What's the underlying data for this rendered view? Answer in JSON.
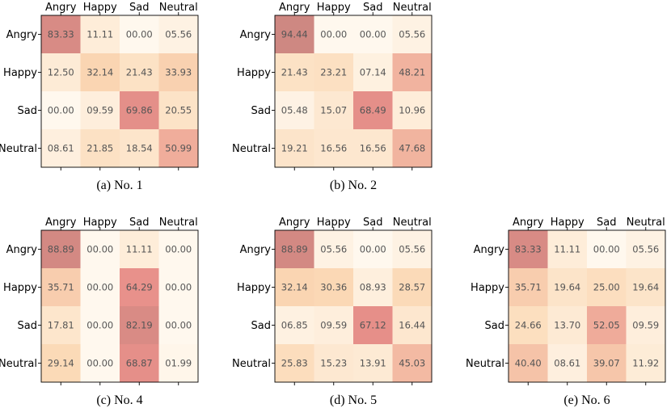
{
  "chart_data": [
    {
      "type": "heatmap",
      "caption": "(a) No. 1",
      "columns": [
        "Angry",
        "Happy",
        "Sad",
        "Neutral"
      ],
      "rows": [
        "Angry",
        "Happy",
        "Sad",
        "Neutral"
      ],
      "labels": [
        [
          "83.33",
          "11.11",
          "00.00",
          "05.56"
        ],
        [
          "12.50",
          "32.14",
          "21.43",
          "33.93"
        ],
        [
          "00.00",
          "09.59",
          "69.86",
          "20.55"
        ],
        [
          "08.61",
          "21.85",
          "18.54",
          "50.99"
        ]
      ],
      "values": [
        [
          83.33,
          11.11,
          0,
          5.56
        ],
        [
          12.5,
          32.14,
          21.43,
          33.93
        ],
        [
          0,
          9.59,
          69.86,
          20.55
        ],
        [
          8.61,
          21.85,
          18.54,
          50.99
        ]
      ]
    },
    {
      "type": "heatmap",
      "caption": "(b) No. 2",
      "columns": [
        "Angry",
        "Happy",
        "Sad",
        "Neutral"
      ],
      "rows": [
        "Angry",
        "Happy",
        "Sad",
        "Neutral"
      ],
      "labels": [
        [
          "94.44",
          "00.00",
          "00.00",
          "05.56"
        ],
        [
          "21.43",
          "23.21",
          "07.14",
          "48.21"
        ],
        [
          "05.48",
          "15.07",
          "68.49",
          "10.96"
        ],
        [
          "19.21",
          "16.56",
          "16.56",
          "47.68"
        ]
      ],
      "values": [
        [
          94.44,
          0,
          0,
          5.56
        ],
        [
          21.43,
          23.21,
          7.14,
          48.21
        ],
        [
          5.48,
          15.07,
          68.49,
          10.96
        ],
        [
          19.21,
          16.56,
          16.56,
          47.68
        ]
      ]
    },
    {
      "type": "heatmap",
      "caption": "(c) No. 4",
      "columns": [
        "Angry",
        "Happy",
        "Sad",
        "Neutral"
      ],
      "rows": [
        "Angry",
        "Happy",
        "Sad",
        "Neutral"
      ],
      "labels": [
        [
          "88.89",
          "00.00",
          "11.11",
          "00.00"
        ],
        [
          "35.71",
          "00.00",
          "64.29",
          "00.00"
        ],
        [
          "17.81",
          "00.00",
          "82.19",
          "00.00"
        ],
        [
          "29.14",
          "00.00",
          "68.87",
          "01.99"
        ]
      ],
      "values": [
        [
          88.89,
          0,
          11.11,
          0
        ],
        [
          35.71,
          0,
          64.29,
          0
        ],
        [
          17.81,
          0,
          82.19,
          0
        ],
        [
          29.14,
          0,
          68.87,
          1.99
        ]
      ]
    },
    {
      "type": "heatmap",
      "caption": "(d) No. 5",
      "columns": [
        "Angry",
        "Happy",
        "Sad",
        "Neutral"
      ],
      "rows": [
        "Angry",
        "Happy",
        "Sad",
        "Neutral"
      ],
      "labels": [
        [
          "88.89",
          "05.56",
          "00.00",
          "05.56"
        ],
        [
          "32.14",
          "30.36",
          "08.93",
          "28.57"
        ],
        [
          "06.85",
          "09.59",
          "67.12",
          "16.44"
        ],
        [
          "25.83",
          "15.23",
          "13.91",
          "45.03"
        ]
      ],
      "values": [
        [
          88.89,
          5.56,
          0,
          5.56
        ],
        [
          32.14,
          30.36,
          8.93,
          28.57
        ],
        [
          6.85,
          9.59,
          67.12,
          16.44
        ],
        [
          25.83,
          15.23,
          13.91,
          45.03
        ]
      ]
    },
    {
      "type": "heatmap",
      "caption": "(e) No. 6",
      "columns": [
        "Angry",
        "Happy",
        "Sad",
        "Neutral"
      ],
      "rows": [
        "Angry",
        "Happy",
        "Sad",
        "Neutral"
      ],
      "labels": [
        [
          "83.33",
          "11.11",
          "00.00",
          "05.56"
        ],
        [
          "35.71",
          "19.64",
          "25.00",
          "19.64"
        ],
        [
          "24.66",
          "13.70",
          "52.05",
          "09.59"
        ],
        [
          "40.40",
          "08.61",
          "39.07",
          "11.92"
        ]
      ],
      "values": [
        [
          83.33,
          11.11,
          0,
          5.56
        ],
        [
          35.71,
          19.64,
          25,
          19.64
        ],
        [
          24.66,
          13.7,
          52.05,
          9.59
        ],
        [
          40.4,
          8.61,
          39.07,
          11.92
        ]
      ]
    }
  ],
  "colors": {
    "low": "#fff8ee",
    "mid": "#fbd9b5",
    "high": "#e8908a",
    "top": "#c98680",
    "cell_text": "#555555"
  }
}
